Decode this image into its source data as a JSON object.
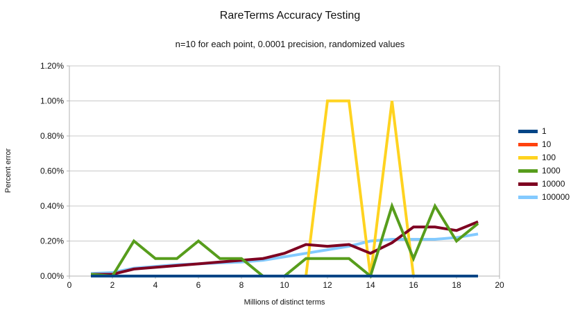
{
  "chart_data": {
    "type": "line",
    "title": "RareTerms Accuracy Testing",
    "subtitle": "n=10 for each point, 0.0001 precision, randomized values",
    "xlabel": "Millions of distinct terms",
    "ylabel": "Percent error",
    "xlim": [
      0,
      20
    ],
    "ylim": [
      0,
      1.2
    ],
    "xticks": [
      0,
      2,
      4,
      6,
      8,
      10,
      12,
      14,
      16,
      18,
      20
    ],
    "yticks": [
      0,
      0.2,
      0.4,
      0.6,
      0.8,
      1.0,
      1.2
    ],
    "y_tick_labels": [
      "0.00%",
      "0.20%",
      "0.40%",
      "0.60%",
      "0.80%",
      "1.00%",
      "1.20%"
    ],
    "grid": true,
    "legend_position": "right",
    "x": [
      1,
      2,
      3,
      4,
      5,
      6,
      7,
      8,
      9,
      10,
      11,
      12,
      13,
      14,
      15,
      16,
      17,
      18,
      19
    ],
    "series": [
      {
        "name": "1",
        "color": "#004586",
        "values": [
          0,
          0,
          0,
          0,
          0,
          0,
          0,
          0,
          0,
          0,
          0,
          0,
          0,
          0,
          0,
          0,
          0,
          0,
          0
        ]
      },
      {
        "name": "10",
        "color": "#FF420E",
        "values": [
          0,
          0,
          0,
          0,
          0,
          0,
          0,
          0,
          0,
          0,
          0,
          0,
          0,
          0,
          0,
          0,
          0,
          0,
          0
        ]
      },
      {
        "name": "100",
        "color": "#FFD320",
        "values": [
          0,
          0,
          0,
          0,
          0,
          0,
          0,
          0,
          0,
          0,
          0,
          1.0,
          1.0,
          0,
          1.0,
          0,
          0,
          0,
          0
        ]
      },
      {
        "name": "1000",
        "color": "#579D1C",
        "values": [
          0.01,
          0,
          0.2,
          0.1,
          0.1,
          0.2,
          0.1,
          0.1,
          0,
          0,
          0.1,
          0.1,
          0.1,
          0,
          0.4,
          0.1,
          0.4,
          0.2,
          0.3
        ]
      },
      {
        "name": "10000",
        "color": "#7E0021",
        "values": [
          0.01,
          0.01,
          0.04,
          0.05,
          0.06,
          0.07,
          0.08,
          0.09,
          0.1,
          0.13,
          0.18,
          0.17,
          0.18,
          0.13,
          0.19,
          0.28,
          0.28,
          0.26,
          0.31
        ]
      },
      {
        "name": "100000",
        "color": "#83CAFF",
        "values": [
          0.015,
          0.02,
          0.045,
          0.055,
          0.065,
          0.07,
          0.075,
          0.08,
          0.09,
          0.11,
          0.13,
          0.15,
          0.17,
          0.2,
          0.21,
          0.21,
          0.21,
          0.22,
          0.24
        ]
      }
    ],
    "draw_order": [
      "100000",
      "100",
      "10000",
      "1000",
      "10",
      "1"
    ],
    "colors": {
      "grid": "#c8c8c8",
      "axis": "#b3b3b3",
      "text": "#111111",
      "background": "#ffffff"
    }
  }
}
